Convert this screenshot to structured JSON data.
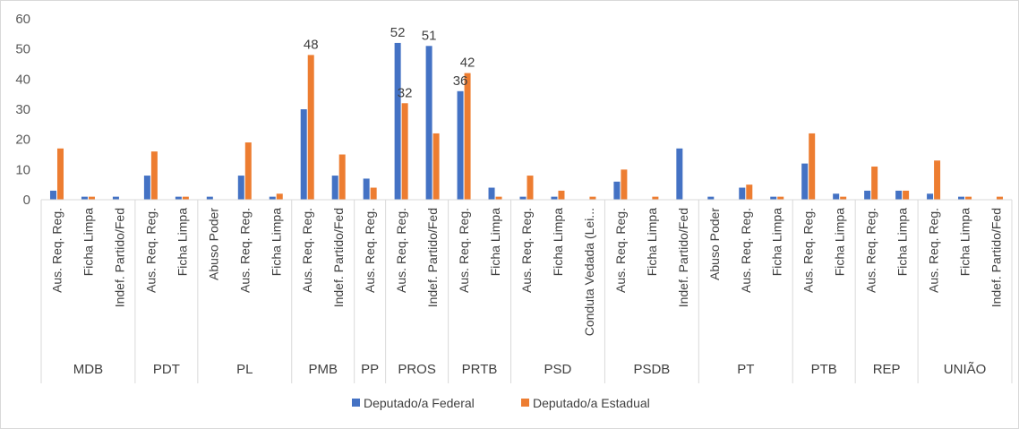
{
  "chart_data": {
    "type": "bar",
    "title": "",
    "xlabel": "",
    "ylabel": "",
    "ylim": [
      0,
      60
    ],
    "yticks": [
      "0",
      "10",
      "20",
      "30",
      "40",
      "50",
      "60"
    ],
    "grid": false,
    "legend_position": "bottom",
    "groups": [
      {
        "name": "MDB",
        "categories": [
          "Aus. Req. Reg.",
          "Ficha Limpa",
          "Indef. Partido/Fed"
        ]
      },
      {
        "name": "PDT",
        "categories": [
          "Aus. Req. Reg.",
          "Ficha Limpa"
        ]
      },
      {
        "name": "PL",
        "categories": [
          "Abuso Poder",
          "Aus. Req. Reg.",
          "Ficha Limpa"
        ]
      },
      {
        "name": "PMB",
        "categories": [
          "Aus. Req. Reg.",
          "Indef. Partido/Fed"
        ]
      },
      {
        "name": "PP",
        "categories": [
          "Aus. Req. Reg."
        ]
      },
      {
        "name": "PROS",
        "categories": [
          "Aus. Req. Reg.",
          "Indef. Partido/Fed"
        ]
      },
      {
        "name": "PRTB",
        "categories": [
          "Aus. Req. Reg.",
          "Ficha Limpa"
        ]
      },
      {
        "name": "PSD",
        "categories": [
          "Aus. Req. Reg.",
          "Ficha Limpa",
          "Conduta Vedada (Lei..."
        ]
      },
      {
        "name": "PSDB",
        "categories": [
          "Aus. Req. Reg.",
          "Ficha Limpa",
          "Indef. Partido/Fed"
        ]
      },
      {
        "name": "PT",
        "categories": [
          "Abuso Poder",
          "Aus. Req. Reg.",
          "Ficha Limpa"
        ]
      },
      {
        "name": "PTB",
        "categories": [
          "Aus. Req. Reg.",
          "Ficha Limpa"
        ]
      },
      {
        "name": "REP",
        "categories": [
          "Aus. Req. Reg.",
          "Ficha Limpa"
        ]
      },
      {
        "name": "UNIÃO",
        "categories": [
          "Aus. Req. Reg.",
          "Ficha Limpa",
          "Indef. Partido/Fed"
        ]
      }
    ],
    "series": [
      {
        "name": "Deputado/a Federal",
        "color": "#4472C4",
        "values": [
          3,
          1,
          1,
          8,
          1,
          1,
          8,
          1,
          30,
          8,
          7,
          52,
          51,
          36,
          4,
          1,
          1,
          0,
          6,
          0,
          17,
          1,
          4,
          1,
          12,
          2,
          3,
          3,
          2,
          1,
          0
        ]
      },
      {
        "name": "Deputado/a Estadual",
        "color": "#ED7D31",
        "values": [
          17,
          1,
          0,
          16,
          1,
          0,
          19,
          2,
          48,
          15,
          4,
          32,
          22,
          42,
          1,
          8,
          3,
          1,
          10,
          1,
          0,
          0,
          5,
          1,
          22,
          1,
          11,
          3,
          13,
          1,
          1
        ]
      }
    ],
    "data_labels": [
      {
        "series": 1,
        "index": 8,
        "text": "48"
      },
      {
        "series": 0,
        "index": 11,
        "text": "52"
      },
      {
        "series": 1,
        "index": 11,
        "text": "32"
      },
      {
        "series": 0,
        "index": 12,
        "text": "51"
      },
      {
        "series": 0,
        "index": 13,
        "text": "36"
      },
      {
        "series": 1,
        "index": 13,
        "text": "42"
      }
    ]
  }
}
